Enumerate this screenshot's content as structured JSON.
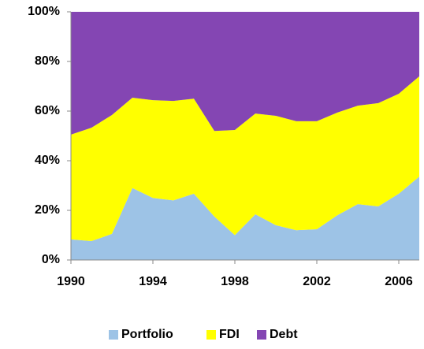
{
  "chart_data": {
    "type": "stacked-area",
    "x": [
      1990,
      1991,
      1992,
      1993,
      1994,
      1995,
      1996,
      1997,
      1998,
      1999,
      2000,
      2001,
      2002,
      2003,
      2004,
      2005,
      2006,
      2007
    ],
    "series": [
      {
        "name": "Portfolio",
        "color": "#9dc3e6",
        "values": [
          8.3,
          7.6,
          10.5,
          29,
          25,
          24,
          26.7,
          17.5,
          10,
          18.4,
          14,
          12,
          12.4,
          18,
          22.5,
          21.6,
          26.7,
          33.6
        ]
      },
      {
        "name": "FDI",
        "color": "#ffff00",
        "values": [
          42.2,
          45.7,
          47.9,
          36.4,
          39.4,
          40.1,
          38.3,
          34.5,
          42.4,
          40.6,
          44.1,
          43.9,
          43.5,
          41.4,
          39.7,
          41.6,
          40.3,
          40.4
        ]
      },
      {
        "name": "Debt",
        "color": "#8446b3",
        "values": [
          49.5,
          46.7,
          41.6,
          34.6,
          35.6,
          35.9,
          35,
          48,
          47.6,
          41,
          41.9,
          44.1,
          44.1,
          40.6,
          37.8,
          36.8,
          33,
          26
        ]
      }
    ],
    "xlim": [
      1990,
      2007
    ],
    "xticks": [
      1990,
      1994,
      1998,
      2002,
      2006
    ],
    "ylim": [
      0,
      100
    ],
    "yticks": [
      {
        "value": 0,
        "label": "0%"
      },
      {
        "value": 20,
        "label": "20%"
      },
      {
        "value": 40,
        "label": "40%"
      },
      {
        "value": 60,
        "label": "60%"
      },
      {
        "value": 80,
        "label": "80%"
      },
      {
        "value": 100,
        "label": "100%"
      }
    ],
    "legend": "bottom"
  }
}
